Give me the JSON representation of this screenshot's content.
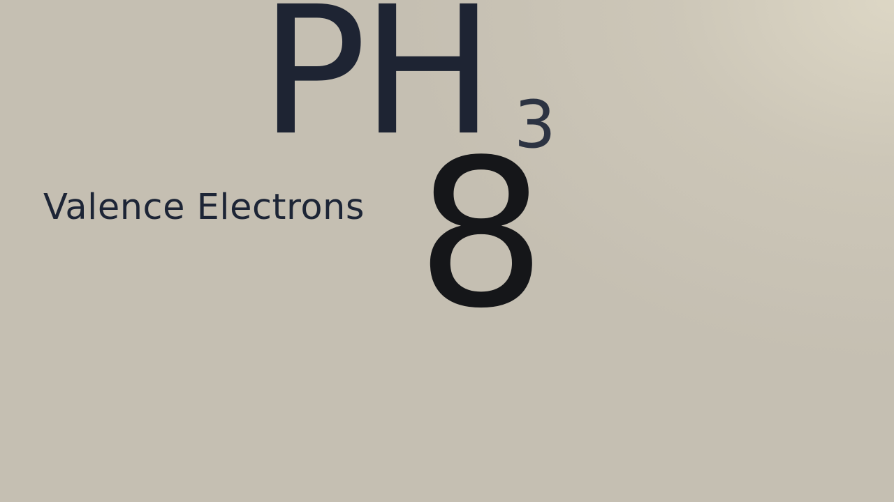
{
  "formula": {
    "main": "PH",
    "subscript": "3"
  },
  "label": "Valence Electrons",
  "count": "8",
  "colors": {
    "background": "#c5bfb2",
    "formula": "#1e2433",
    "label": "#1d2536",
    "count": "#151619"
  }
}
